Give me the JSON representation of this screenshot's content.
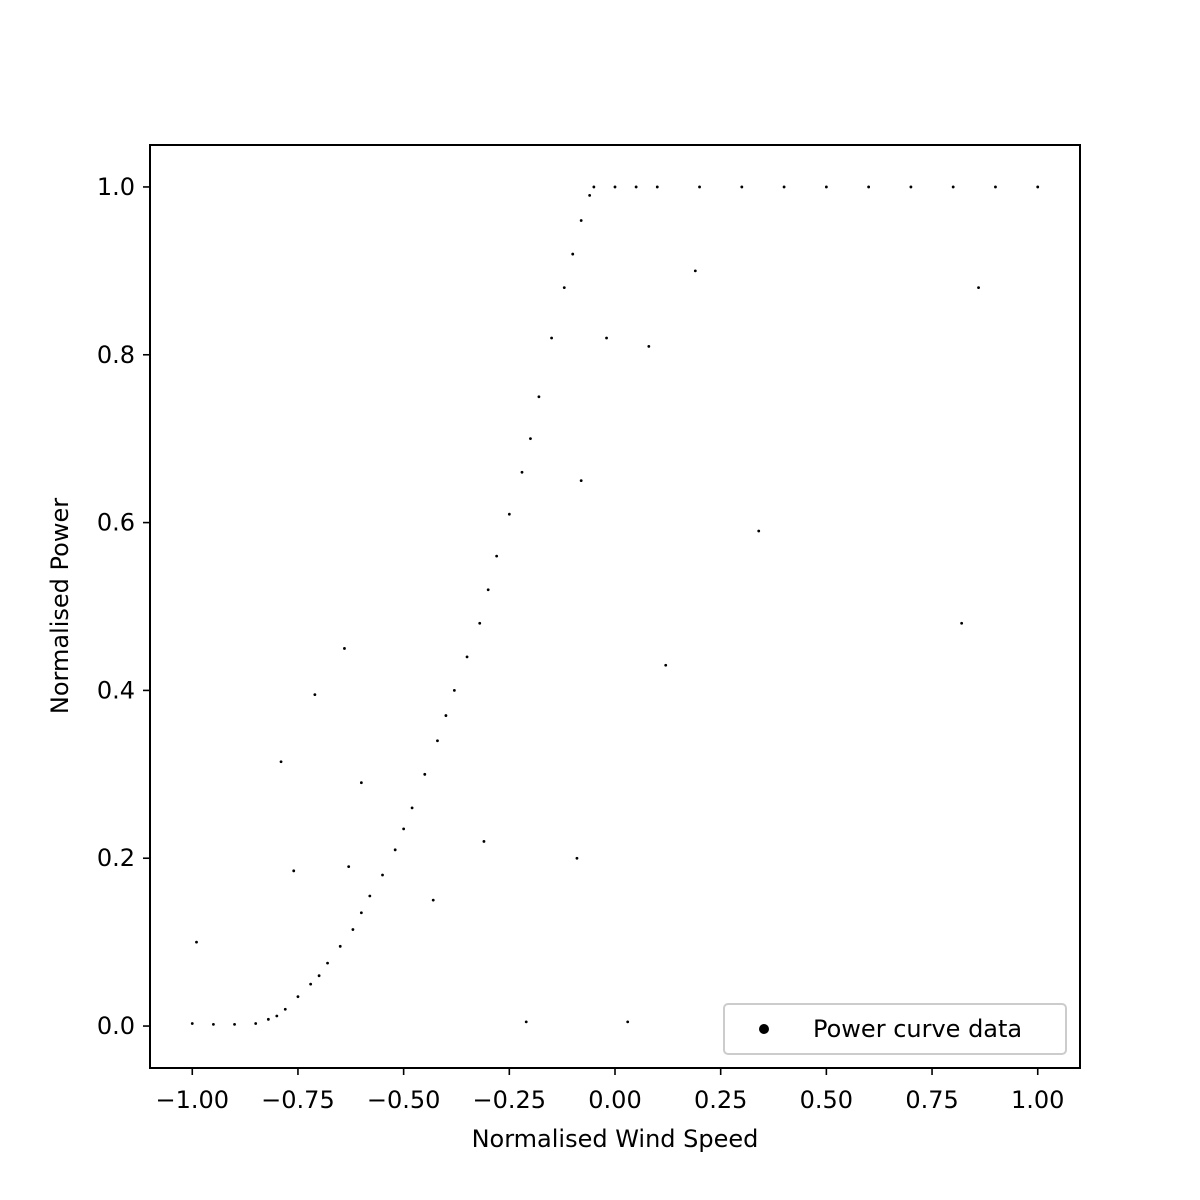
{
  "chart_data": {
    "type": "scatter",
    "title": "",
    "xlabel": "Normalised Wind Speed",
    "ylabel": "Normalised Power",
    "xlim": [
      -1.1,
      1.1
    ],
    "ylim": [
      -0.05,
      1.05
    ],
    "xticks": [
      -1.0,
      -0.75,
      -0.5,
      -0.25,
      0.0,
      0.25,
      0.5,
      0.75,
      1.0
    ],
    "xtick_labels": [
      "−1.00",
      "−0.75",
      "−0.50",
      "−0.25",
      "0.00",
      "0.25",
      "0.50",
      "0.75",
      "1.00"
    ],
    "yticks": [
      0.0,
      0.2,
      0.4,
      0.6,
      0.8,
      1.0
    ],
    "ytick_labels": [
      "0.0",
      "0.2",
      "0.4",
      "0.6",
      "0.8",
      "1.0"
    ],
    "grid": false,
    "legend_position": "lower-right",
    "colors": {
      "points": "#000000",
      "legend_border": "#cccccc"
    },
    "series": [
      {
        "name": "Power curve data",
        "x": [
          -1.0,
          -0.95,
          -0.9,
          -0.85,
          -0.82,
          -0.8,
          -0.78,
          -0.75,
          -0.72,
          -0.7,
          -0.68,
          -0.65,
          -0.62,
          -0.6,
          -0.58,
          -0.55,
          -0.52,
          -0.5,
          -0.48,
          -0.45,
          -0.42,
          -0.4,
          -0.38,
          -0.35,
          -0.32,
          -0.3,
          -0.28,
          -0.25,
          -0.22,
          -0.2,
          -0.18,
          -0.15,
          -0.12,
          -0.1,
          -0.08,
          -0.06,
          -0.05,
          0.0,
          0.05,
          0.1,
          0.2,
          0.3,
          0.4,
          0.5,
          0.6,
          0.7,
          0.8,
          0.9,
          1.0,
          -0.99,
          -0.79,
          -0.76,
          -0.71,
          -0.64,
          -0.63,
          -0.6,
          -0.43,
          -0.31,
          -0.21,
          -0.09,
          -0.08,
          -0.02,
          0.03,
          0.08,
          0.12,
          0.19,
          0.34,
          0.82,
          0.86
        ],
        "y": [
          0.003,
          0.002,
          0.002,
          0.003,
          0.008,
          0.012,
          0.02,
          0.035,
          0.05,
          0.06,
          0.075,
          0.095,
          0.115,
          0.135,
          0.155,
          0.18,
          0.21,
          0.235,
          0.26,
          0.3,
          0.34,
          0.37,
          0.4,
          0.44,
          0.48,
          0.52,
          0.56,
          0.61,
          0.66,
          0.7,
          0.75,
          0.82,
          0.88,
          0.92,
          0.96,
          0.99,
          1.0,
          1.0,
          1.0,
          1.0,
          1.0,
          1.0,
          1.0,
          1.0,
          1.0,
          1.0,
          1.0,
          1.0,
          1.0,
          0.1,
          0.315,
          0.185,
          0.395,
          0.45,
          0.19,
          0.29,
          0.15,
          0.22,
          0.005,
          0.2,
          0.65,
          0.82,
          0.005,
          0.81,
          0.43,
          0.9,
          0.59,
          0.48,
          0.88
        ]
      }
    ]
  }
}
